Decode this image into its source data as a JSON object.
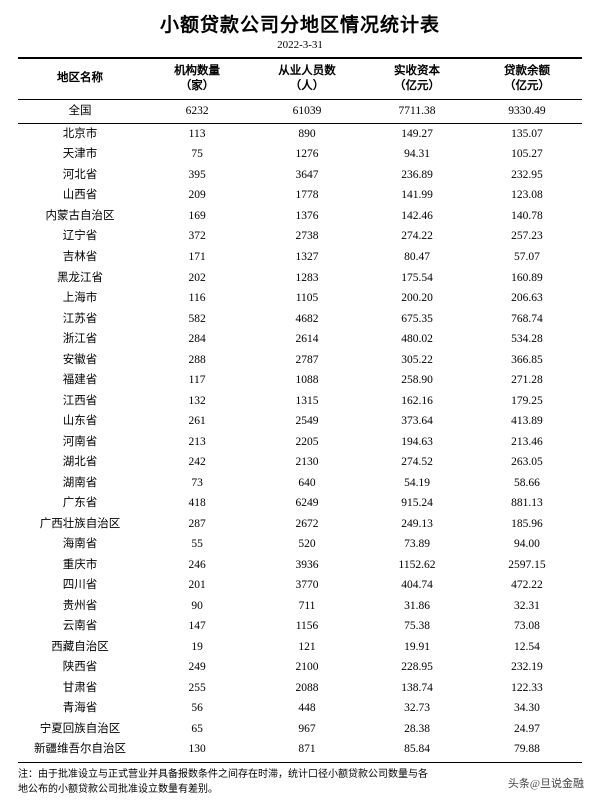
{
  "title": "小额贷款公司分地区情况统计表",
  "date": "2022-3-31",
  "columns": [
    {
      "line1": "地区名称",
      "line2": ""
    },
    {
      "line1": "机构数量",
      "line2": "（家）"
    },
    {
      "line1": "从业人员数",
      "line2": "（人）"
    },
    {
      "line1": "实收资本",
      "line2": "（亿元）"
    },
    {
      "line1": "贷款余额",
      "line2": "（亿元）"
    }
  ],
  "rows": [
    [
      "全国",
      "6232",
      "61039",
      "7711.38",
      "9330.49"
    ],
    [
      "北京市",
      "113",
      "890",
      "149.27",
      "135.07"
    ],
    [
      "天津市",
      "75",
      "1276",
      "94.31",
      "105.27"
    ],
    [
      "河北省",
      "395",
      "3647",
      "236.89",
      "232.95"
    ],
    [
      "山西省",
      "209",
      "1778",
      "141.99",
      "123.08"
    ],
    [
      "内蒙古自治区",
      "169",
      "1376",
      "142.46",
      "140.78"
    ],
    [
      "辽宁省",
      "372",
      "2738",
      "274.22",
      "257.23"
    ],
    [
      "吉林省",
      "171",
      "1327",
      "80.47",
      "57.07"
    ],
    [
      "黑龙江省",
      "202",
      "1283",
      "175.54",
      "160.89"
    ],
    [
      "上海市",
      "116",
      "1105",
      "200.20",
      "206.63"
    ],
    [
      "江苏省",
      "582",
      "4682",
      "675.35",
      "768.74"
    ],
    [
      "浙江省",
      "284",
      "2614",
      "480.02",
      "534.28"
    ],
    [
      "安徽省",
      "288",
      "2787",
      "305.22",
      "366.85"
    ],
    [
      "福建省",
      "117",
      "1088",
      "258.90",
      "271.28"
    ],
    [
      "江西省",
      "132",
      "1315",
      "162.16",
      "179.25"
    ],
    [
      "山东省",
      "261",
      "2549",
      "373.64",
      "413.89"
    ],
    [
      "河南省",
      "213",
      "2205",
      "194.63",
      "213.46"
    ],
    [
      "湖北省",
      "242",
      "2130",
      "274.52",
      "263.05"
    ],
    [
      "湖南省",
      "73",
      "640",
      "54.19",
      "58.66"
    ],
    [
      "广东省",
      "418",
      "6249",
      "915.24",
      "881.13"
    ],
    [
      "广西壮族自治区",
      "287",
      "2672",
      "249.13",
      "185.96"
    ],
    [
      "海南省",
      "55",
      "520",
      "73.89",
      "94.00"
    ],
    [
      "重庆市",
      "246",
      "3936",
      "1152.62",
      "2597.15"
    ],
    [
      "四川省",
      "201",
      "3770",
      "404.74",
      "472.22"
    ],
    [
      "贵州省",
      "90",
      "711",
      "31.86",
      "32.31"
    ],
    [
      "云南省",
      "147",
      "1156",
      "75.38",
      "73.08"
    ],
    [
      "西藏自治区",
      "19",
      "121",
      "19.91",
      "12.54"
    ],
    [
      "陕西省",
      "249",
      "2100",
      "228.95",
      "232.19"
    ],
    [
      "甘肃省",
      "255",
      "2088",
      "138.74",
      "122.33"
    ],
    [
      "青海省",
      "56",
      "448",
      "32.73",
      "34.30"
    ],
    [
      "宁夏回族自治区",
      "65",
      "967",
      "28.38",
      "24.97"
    ],
    [
      "新疆维吾尔自治区",
      "130",
      "871",
      "85.84",
      "79.88"
    ]
  ],
  "footnote_line1": "注：由于批准设立与正式营业并具备报数条件之间存在时滞，统计口径小额贷款公司数量与各",
  "footnote_line2": "地公布的小额贷款公司批准设立数量有差别。",
  "watermark": "头条@旦说金融"
}
